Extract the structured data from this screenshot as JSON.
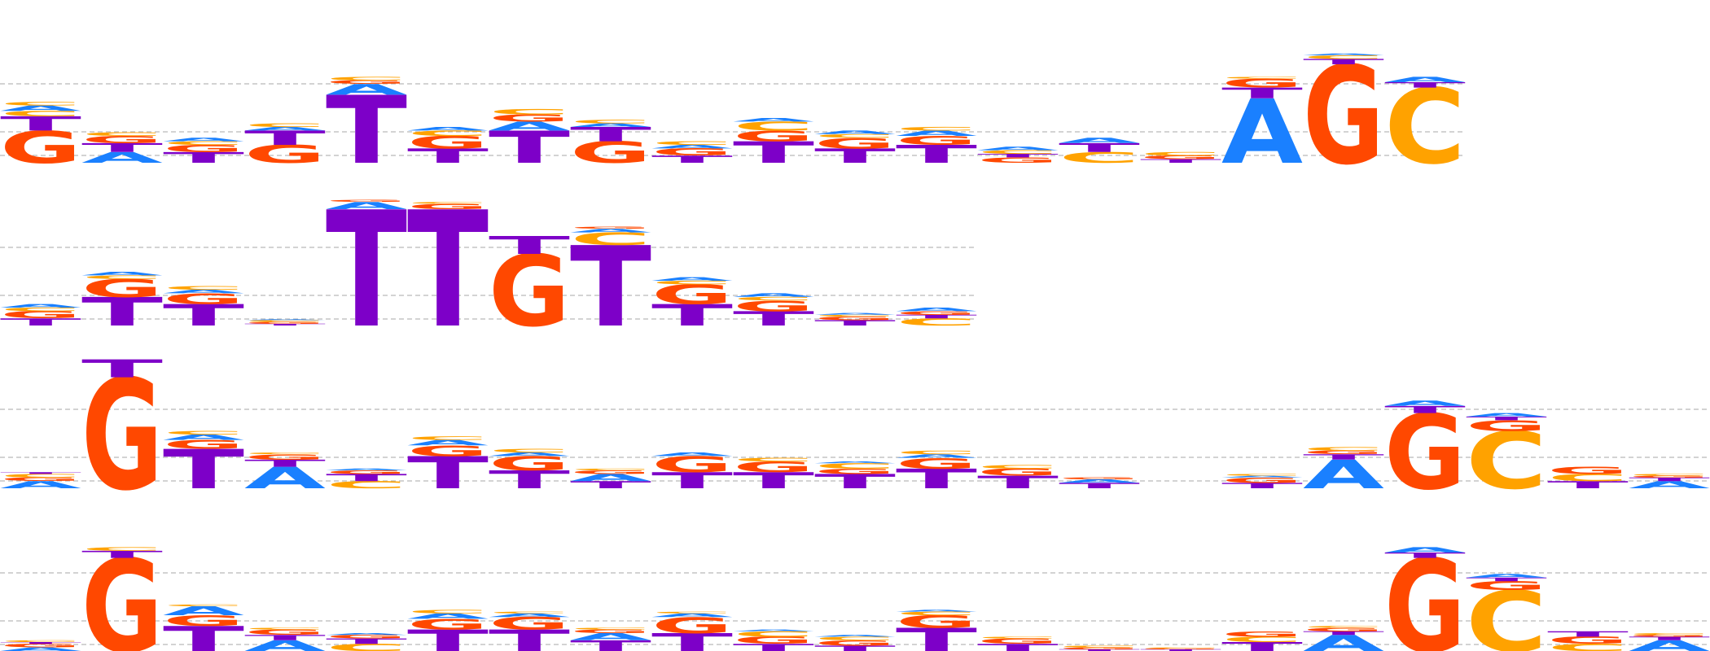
{
  "colors": {
    "A": "#1a80ff",
    "C": "#ffa200",
    "G": "#ff4800",
    "T": "#7d00c8",
    "guide_line": "#b9b9b9",
    "background": "#ffffff"
  },
  "logos": [
    {
      "id": "row-1",
      "columns": [
        [
          [
            "G",
            0.18
          ],
          [
            "C",
            0.03
          ],
          [
            "A",
            0.03
          ],
          [
            "T",
            0.08
          ],
          [
            "C",
            0.02
          ]
        ],
        [
          [
            "T",
            0.05
          ],
          [
            "A",
            0.06
          ],
          [
            "G",
            0.04
          ],
          [
            "C",
            0.02
          ]
        ],
        [
          [
            "T",
            0.06
          ],
          [
            "G",
            0.04
          ],
          [
            "C",
            0.02
          ],
          [
            "A",
            0.02
          ]
        ],
        [
          [
            "G",
            0.1
          ],
          [
            "T",
            0.08
          ],
          [
            "A",
            0.02
          ],
          [
            "C",
            0.02
          ]
        ],
        [
          [
            "T",
            0.38
          ],
          [
            "A",
            0.06
          ],
          [
            "G",
            0.02
          ],
          [
            "C",
            0.02
          ]
        ],
        [
          [
            "T",
            0.08
          ],
          [
            "G",
            0.07
          ],
          [
            "C",
            0.03
          ],
          [
            "A",
            0.02
          ]
        ],
        [
          [
            "T",
            0.18
          ],
          [
            "A",
            0.05
          ],
          [
            "G",
            0.04
          ],
          [
            "C",
            0.03
          ]
        ],
        [
          [
            "G",
            0.12
          ],
          [
            "T",
            0.08
          ],
          [
            "A",
            0.02
          ],
          [
            "C",
            0.02
          ]
        ],
        [
          [
            "T",
            0.04
          ],
          [
            "G",
            0.04
          ],
          [
            "A",
            0.02
          ],
          [
            "C",
            0.02
          ]
        ],
        [
          [
            "T",
            0.12
          ],
          [
            "C",
            0.05
          ],
          [
            "A",
            0.02
          ],
          [
            "G",
            0.06
          ]
        ],
        [
          [
            "T",
            0.08
          ],
          [
            "G",
            0.06
          ],
          [
            "C",
            0.02
          ],
          [
            "A",
            0.02
          ]
        ],
        [
          [
            "T",
            0.1
          ],
          [
            "G",
            0.05
          ],
          [
            "A",
            0.03
          ],
          [
            "C",
            0.02
          ]
        ],
        [
          [
            "G",
            0.03
          ],
          [
            "T",
            0.02
          ],
          [
            "C",
            0.02
          ],
          [
            "A",
            0.02
          ]
        ],
        [
          [
            "T",
            0.05
          ],
          [
            "C",
            0.06
          ],
          [
            "A",
            0.03
          ]
        ],
        [
          [
            "T",
            0.02
          ],
          [
            "G",
            0.02
          ],
          [
            "C",
            0.02
          ]
        ],
        [
          [
            "A",
            0.36
          ],
          [
            "T",
            0.06
          ],
          [
            "G",
            0.05
          ],
          [
            "C",
            0.01
          ]
        ],
        [
          [
            "G",
            0.55
          ],
          [
            "T",
            0.03
          ],
          [
            "C",
            0.02
          ],
          [
            "A",
            0.01
          ]
        ],
        [
          [
            "C",
            0.42
          ],
          [
            "T",
            0.03
          ],
          [
            "A",
            0.03
          ]
        ],
        [],
        [],
        []
      ]
    },
    {
      "id": "row-2",
      "columns": [
        [
          [
            "T",
            0.04
          ],
          [
            "G",
            0.04
          ],
          [
            "C",
            0.02
          ],
          [
            "A",
            0.02
          ]
        ],
        [
          [
            "T",
            0.16
          ],
          [
            "G",
            0.1
          ],
          [
            "C",
            0.02
          ],
          [
            "A",
            0.02
          ]
        ],
        [
          [
            "T",
            0.12
          ],
          [
            "G",
            0.06
          ],
          [
            "A",
            0.02
          ],
          [
            "C",
            0.02
          ]
        ],
        [
          [
            "T",
            0.01
          ],
          [
            "G",
            0.01
          ],
          [
            "C",
            0.01
          ],
          [
            "A",
            0.005
          ]
        ],
        [
          [
            "T",
            0.65
          ],
          [
            "A",
            0.04
          ],
          [
            "G",
            0.01
          ]
        ],
        [
          [
            "T",
            0.65
          ],
          [
            "G",
            0.03
          ],
          [
            "C",
            0.01
          ]
        ],
        [
          [
            "G",
            0.4
          ],
          [
            "T",
            0.1
          ]
        ],
        [
          [
            "T",
            0.45
          ],
          [
            "C",
            0.07
          ],
          [
            "A",
            0.02
          ],
          [
            "G",
            0.01
          ]
        ],
        [
          [
            "T",
            0.12
          ],
          [
            "G",
            0.11
          ],
          [
            "C",
            0.02
          ],
          [
            "A",
            0.02
          ]
        ],
        [
          [
            "T",
            0.08
          ],
          [
            "G",
            0.06
          ],
          [
            "C",
            0.02
          ],
          [
            "A",
            0.02
          ]
        ],
        [
          [
            "T",
            0.03
          ],
          [
            "G",
            0.02
          ],
          [
            "C",
            0.01
          ],
          [
            "A",
            0.01
          ]
        ],
        [
          [
            "C",
            0.04
          ],
          [
            "T",
            0.02
          ],
          [
            "G",
            0.02
          ],
          [
            "A",
            0.02
          ]
        ],
        [],
        [],
        [],
        [],
        [],
        [],
        [],
        [],
        []
      ]
    },
    {
      "id": "row-3",
      "columns": [
        [
          [
            "A",
            0.04
          ],
          [
            "G",
            0.02
          ],
          [
            "C",
            0.02
          ],
          [
            "T",
            0.01
          ]
        ],
        [
          [
            "G",
            0.62
          ],
          [
            "T",
            0.1
          ]
        ],
        [
          [
            "T",
            0.22
          ],
          [
            "G",
            0.05
          ],
          [
            "A",
            0.03
          ],
          [
            "C",
            0.02
          ]
        ],
        [
          [
            "A",
            0.12
          ],
          [
            "T",
            0.04
          ],
          [
            "G",
            0.03
          ],
          [
            "C",
            0.01
          ]
        ],
        [
          [
            "C",
            0.04
          ],
          [
            "T",
            0.04
          ],
          [
            "G",
            0.02
          ],
          [
            "A",
            0.01
          ]
        ],
        [
          [
            "T",
            0.18
          ],
          [
            "G",
            0.06
          ],
          [
            "A",
            0.03
          ],
          [
            "C",
            0.02
          ]
        ],
        [
          [
            "T",
            0.1
          ],
          [
            "G",
            0.08
          ],
          [
            "A",
            0.02
          ],
          [
            "C",
            0.02
          ]
        ],
        [
          [
            "T",
            0.04
          ],
          [
            "A",
            0.04
          ],
          [
            "G",
            0.02
          ],
          [
            "C",
            0.01
          ]
        ],
        [
          [
            "T",
            0.09
          ],
          [
            "G",
            0.09
          ],
          [
            "A",
            0.02
          ]
        ],
        [
          [
            "T",
            0.09
          ],
          [
            "G",
            0.06
          ],
          [
            "C",
            0.02
          ]
        ],
        [
          [
            "T",
            0.08
          ],
          [
            "G",
            0.03
          ],
          [
            "C",
            0.03
          ],
          [
            "A",
            0.01
          ]
        ],
        [
          [
            "T",
            0.11
          ],
          [
            "G",
            0.06
          ],
          [
            "A",
            0.02
          ],
          [
            "C",
            0.02
          ]
        ],
        [
          [
            "T",
            0.07
          ],
          [
            "G",
            0.04
          ],
          [
            "C",
            0.02
          ]
        ],
        [
          [
            "T",
            0.03
          ],
          [
            "A",
            0.02
          ],
          [
            "G",
            0.01
          ]
        ],
        [],
        [
          [
            "T",
            0.03
          ],
          [
            "G",
            0.03
          ],
          [
            "A",
            0.01
          ],
          [
            "C",
            0.01
          ]
        ],
        [
          [
            "A",
            0.16
          ],
          [
            "T",
            0.03
          ],
          [
            "G",
            0.02
          ],
          [
            "C",
            0.02
          ]
        ],
        [
          [
            "G",
            0.42
          ],
          [
            "T",
            0.04
          ],
          [
            "A",
            0.03
          ]
        ],
        [
          [
            "C",
            0.32
          ],
          [
            "G",
            0.06
          ],
          [
            "T",
            0.02
          ],
          [
            "A",
            0.02
          ]
        ],
        [
          [
            "T",
            0.04
          ],
          [
            "C",
            0.04
          ],
          [
            "G",
            0.04
          ]
        ],
        [
          [
            "A",
            0.04
          ],
          [
            "T",
            0.02
          ],
          [
            "G",
            0.01
          ],
          [
            "C",
            0.01
          ]
        ]
      ]
    },
    {
      "id": "row-4",
      "columns": [
        [
          [
            "A",
            0.02
          ],
          [
            "G",
            0.02
          ],
          [
            "T",
            0.01
          ],
          [
            "C",
            0.01
          ]
        ],
        [
          [
            "G",
            0.52
          ],
          [
            "T",
            0.04
          ],
          [
            "C",
            0.02
          ]
        ],
        [
          [
            "T",
            0.14
          ],
          [
            "G",
            0.06
          ],
          [
            "A",
            0.05
          ],
          [
            "C",
            0.01
          ]
        ],
        [
          [
            "T",
            0.03
          ],
          [
            "A",
            0.06
          ],
          [
            "G",
            0.03
          ],
          [
            "C",
            0.01
          ]
        ],
        [
          [
            "C",
            0.04
          ],
          [
            "T",
            0.03
          ],
          [
            "G",
            0.02
          ],
          [
            "A",
            0.01
          ]
        ],
        [
          [
            "T",
            0.12
          ],
          [
            "G",
            0.06
          ],
          [
            "C",
            0.02
          ],
          [
            "A",
            0.03
          ]
        ],
        [
          [
            "T",
            0.12
          ],
          [
            "G",
            0.07
          ],
          [
            "C",
            0.01
          ],
          [
            "A",
            0.02
          ]
        ],
        [
          [
            "T",
            0.06
          ],
          [
            "A",
            0.04
          ],
          [
            "G",
            0.02
          ],
          [
            "C",
            0.01
          ]
        ],
        [
          [
            "T",
            0.1
          ],
          [
            "G",
            0.09
          ],
          [
            "A",
            0.02
          ],
          [
            "C",
            0.01
          ]
        ],
        [
          [
            "T",
            0.04
          ],
          [
            "G",
            0.04
          ],
          [
            "C",
            0.03
          ],
          [
            "A",
            0.01
          ]
        ],
        [
          [
            "T",
            0.03
          ],
          [
            "G",
            0.03
          ],
          [
            "C",
            0.02
          ],
          [
            "A",
            0.01
          ]
        ],
        [
          [
            "T",
            0.13
          ],
          [
            "G",
            0.07
          ],
          [
            "C",
            0.02
          ],
          [
            "A",
            0.01
          ]
        ],
        [
          [
            "T",
            0.04
          ],
          [
            "G",
            0.03
          ],
          [
            "C",
            0.01
          ]
        ],
        [
          [
            "T",
            0.01
          ],
          [
            "G",
            0.01
          ],
          [
            "C",
            0.01
          ]
        ],
        [
          [
            "T",
            0.01
          ],
          [
            "G",
            0.005
          ],
          [
            "C",
            0.005
          ]
        ],
        [
          [
            "T",
            0.05
          ],
          [
            "C",
            0.03
          ],
          [
            "G",
            0.03
          ]
        ],
        [
          [
            "A",
            0.09
          ],
          [
            "T",
            0.02
          ],
          [
            "G",
            0.02
          ],
          [
            "C",
            0.01
          ]
        ],
        [
          [
            "G",
            0.52
          ],
          [
            "T",
            0.03
          ],
          [
            "A",
            0.03
          ]
        ],
        [
          [
            "C",
            0.34
          ],
          [
            "G",
            0.05
          ],
          [
            "T",
            0.02
          ],
          [
            "A",
            0.02
          ]
        ],
        [
          [
            "T",
            0.03
          ],
          [
            "C",
            0.04
          ],
          [
            "G",
            0.04
          ]
        ],
        [
          [
            "A",
            0.06
          ],
          [
            "T",
            0.02
          ],
          [
            "G",
            0.01
          ],
          [
            "C",
            0.01
          ]
        ]
      ]
    }
  ]
}
